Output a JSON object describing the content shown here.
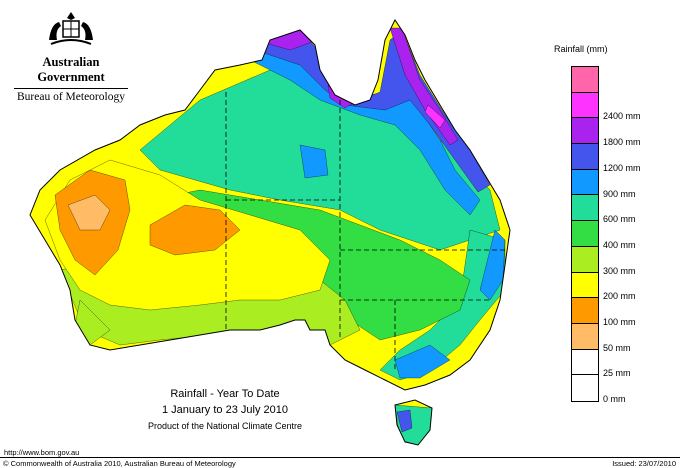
{
  "header": {
    "government": "Australian Government",
    "bureau": "Bureau of Meteorology"
  },
  "legend": {
    "title": "Rainfall (mm)",
    "items": [
      {
        "label": "",
        "color": "#ff66aa"
      },
      {
        "label": "2400 mm",
        "color": "#ff33ff"
      },
      {
        "label": "1800 mm",
        "color": "#aa22ee"
      },
      {
        "label": "1200 mm",
        "color": "#4455ee"
      },
      {
        "label": "900 mm",
        "color": "#1199ff"
      },
      {
        "label": "600 mm",
        "color": "#22dd99"
      },
      {
        "label": "400 mm",
        "color": "#33dd44"
      },
      {
        "label": "300 mm",
        "color": "#aaee22"
      },
      {
        "label": "200 mm",
        "color": "#ffff00"
      },
      {
        "label": "100 mm",
        "color": "#ff9900"
      },
      {
        "label": "50 mm",
        "color": "#ffbb66"
      },
      {
        "label": "25 mm",
        "color": "#ffffff"
      },
      {
        "label": "0 mm",
        "color": "#ffffff"
      }
    ]
  },
  "caption": {
    "title": "Rainfall - Year To Date",
    "period": "1 January to 23 July 2010",
    "product": "Product of the National Climate Centre"
  },
  "footer": {
    "url": "http://www.bom.gov.au",
    "copyright": "© Commonwealth of Australia 2010, Australian Bureau of Meteorology",
    "issued": "Issued: 23/07/2010"
  },
  "colors": {
    "c2400": "#ff33ff",
    "c1800": "#aa22ee",
    "c1200": "#4455ee",
    "c900": "#1199ff",
    "c600": "#22dd99",
    "c400": "#33dd44",
    "c300": "#aaee22",
    "c200": "#ffff00",
    "c100": "#ff9900",
    "c50": "#ffbb66"
  }
}
